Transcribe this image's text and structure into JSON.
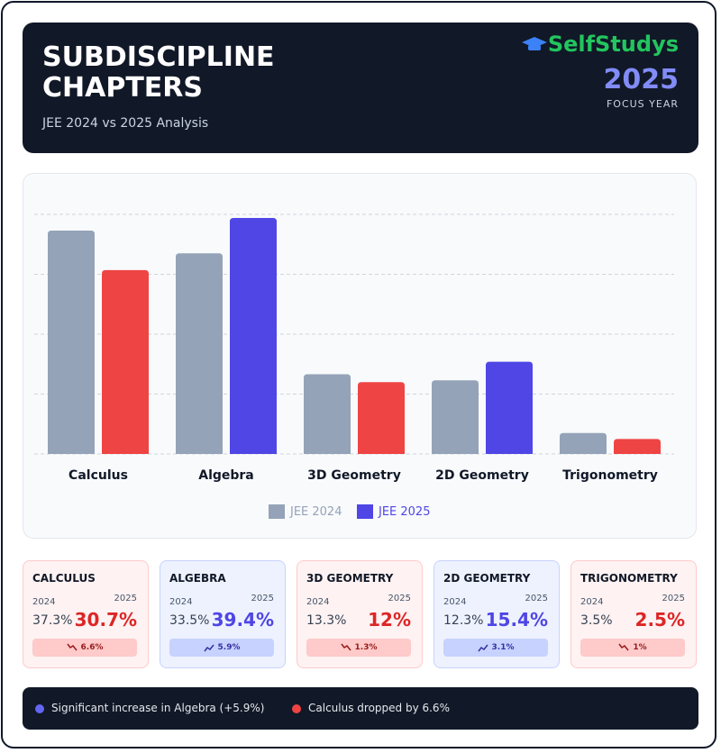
{
  "header": {
    "title_lines": [
      "SUBDISCIPLINE",
      "CHAPTERS"
    ],
    "subtitle": "JEE 2024 vs 2025 Analysis",
    "brand": "SelfStudys",
    "year": "2025",
    "year_caption": "FOCUS YEAR"
  },
  "chart_data": {
    "type": "bar",
    "categories": [
      "Calculus",
      "Algebra",
      "3D Geometry",
      "2D Geometry",
      "Trigonometry"
    ],
    "series": [
      {
        "name": "JEE 2024",
        "color": "#94a3b8",
        "values": [
          37.3,
          33.5,
          13.3,
          12.3,
          3.5
        ]
      },
      {
        "name": "JEE 2025",
        "color": "#4f46e5",
        "colors": [
          "#ef4444",
          "#4f46e5",
          "#ef4444",
          "#4f46e5",
          "#ef4444"
        ],
        "values": [
          30.7,
          39.4,
          12,
          15.4,
          2.5
        ]
      }
    ],
    "ylim": [
      0,
      40
    ],
    "yticks": [
      0,
      10,
      20,
      30,
      40
    ],
    "grid": true
  },
  "cards": [
    {
      "title": "CALCULUS",
      "year_a": "2024",
      "year_b": "2025",
      "value_a": "37.3%",
      "value_b": "30.7%",
      "change": "6.6%",
      "trend": "down"
    },
    {
      "title": "ALGEBRA",
      "year_a": "2024",
      "year_b": "2025",
      "value_a": "33.5%",
      "value_b": "39.4%",
      "change": "5.9%",
      "trend": "up"
    },
    {
      "title": "3D GEOMETRY",
      "year_a": "2024",
      "year_b": "2025",
      "value_a": "13.3%",
      "value_b": "12%",
      "change": "1.3%",
      "trend": "down"
    },
    {
      "title": "2D GEOMETRY",
      "year_a": "2024",
      "year_b": "2025",
      "value_a": "12.3%",
      "value_b": "15.4%",
      "change": "3.1%",
      "trend": "up"
    },
    {
      "title": "TRIGONOMETRY",
      "year_a": "2024",
      "year_b": "2025",
      "value_a": "3.5%",
      "value_b": "2.5%",
      "change": "1%",
      "trend": "down"
    }
  ],
  "footer": {
    "notes": [
      {
        "text": "Significant increase in Algebra (+5.9%)",
        "color": "#6366f1"
      },
      {
        "text": "Calculus dropped by 6.6%",
        "color": "#ef4444"
      }
    ]
  }
}
